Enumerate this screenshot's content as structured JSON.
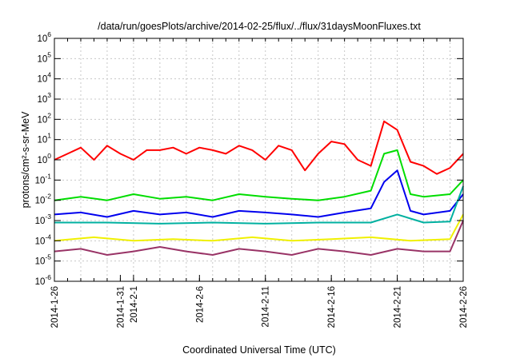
{
  "chart_data": {
    "type": "line",
    "title": "/data/run/goesPlots/archive/2014-02-25/flux/../flux/31daysMoonFluxes.txt",
    "xlabel": "Coordinated Universal Time (UTC)",
    "ylabel": "protons/cm²-s-sr-MeV",
    "yscale": "log",
    "ylim": [
      1e-06,
      1000000.0
    ],
    "xlim_days": [
      0,
      31
    ],
    "x_ticks": [
      {
        "day": 0,
        "label": "2014-1-26"
      },
      {
        "day": 5,
        "label": "2014-1-31"
      },
      {
        "day": 6,
        "label": "2014-2-1"
      },
      {
        "day": 11,
        "label": "2014-2-6"
      },
      {
        "day": 16,
        "label": "2014-2-11"
      },
      {
        "day": 21,
        "label": "2014-2-16"
      },
      {
        "day": 26,
        "label": "2014-2-21"
      },
      {
        "day": 31,
        "label": "2014-2-26"
      }
    ],
    "y_ticks": [
      {
        "exp": -6,
        "base": "10",
        "sup": "-6"
      },
      {
        "exp": -5,
        "base": "10",
        "sup": "-5"
      },
      {
        "exp": -4,
        "base": "10",
        "sup": "-4"
      },
      {
        "exp": -3,
        "base": "10",
        "sup": "-3"
      },
      {
        "exp": -2,
        "base": "10",
        "sup": "-2"
      },
      {
        "exp": -1,
        "base": "10",
        "sup": "-1"
      },
      {
        "exp": 0,
        "base": "10",
        "sup": "0"
      },
      {
        "exp": 1,
        "base": "10",
        "sup": "1"
      },
      {
        "exp": 2,
        "base": "10",
        "sup": "2"
      },
      {
        "exp": 3,
        "base": "10",
        "sup": "3"
      },
      {
        "exp": 4,
        "base": "10",
        "sup": "4"
      },
      {
        "exp": 5,
        "base": "10",
        "sup": "5"
      },
      {
        "exp": 6,
        "base": "10",
        "sup": "6"
      }
    ],
    "grid": true,
    "series": [
      {
        "color": "#ff0000",
        "x": [
          0,
          1,
          2,
          3,
          4,
          5,
          6,
          7,
          8,
          9,
          10,
          11,
          12,
          13,
          14,
          15,
          16,
          17,
          18,
          19,
          20,
          21,
          22,
          23,
          24,
          25,
          26,
          27,
          28,
          29,
          30,
          31
        ],
        "y": [
          1,
          2,
          4,
          1,
          5,
          2,
          1,
          3,
          3,
          4,
          2,
          4,
          3,
          2,
          5,
          3,
          1,
          5,
          3,
          0.3,
          2,
          8,
          6,
          1,
          0.5,
          80,
          30,
          0.8,
          0.5,
          0.2,
          0.4,
          2
        ]
      },
      {
        "color": "#00dd00",
        "x": [
          0,
          2,
          4,
          6,
          8,
          10,
          12,
          14,
          16,
          18,
          20,
          22,
          24,
          25,
          26,
          27,
          28,
          30,
          31
        ],
        "y": [
          0.01,
          0.015,
          0.01,
          0.02,
          0.012,
          0.015,
          0.01,
          0.02,
          0.015,
          0.012,
          0.01,
          0.015,
          0.03,
          2,
          3,
          0.02,
          0.015,
          0.02,
          0.1
        ]
      },
      {
        "color": "#0000ee",
        "x": [
          0,
          2,
          4,
          6,
          8,
          10,
          12,
          14,
          16,
          18,
          20,
          22,
          24,
          25,
          26,
          27,
          28,
          30,
          31
        ],
        "y": [
          0.002,
          0.0025,
          0.0015,
          0.003,
          0.002,
          0.0025,
          0.0015,
          0.003,
          0.0025,
          0.002,
          0.0015,
          0.0025,
          0.004,
          0.08,
          0.3,
          0.003,
          0.002,
          0.003,
          0.02
        ]
      },
      {
        "color": "#00b0a0",
        "x": [
          0,
          4,
          8,
          12,
          16,
          20,
          24,
          26,
          28,
          30,
          31
        ],
        "y": [
          0.0008,
          0.0008,
          0.0007,
          0.0008,
          0.0007,
          0.0008,
          0.0008,
          0.002,
          0.0008,
          0.0009,
          0.05
        ]
      },
      {
        "color": "#f0f000",
        "x": [
          0,
          3,
          6,
          9,
          12,
          15,
          18,
          21,
          24,
          27,
          30,
          31
        ],
        "y": [
          0.0001,
          0.00015,
          0.0001,
          0.00012,
          0.0001,
          0.00015,
          0.0001,
          0.00012,
          0.00015,
          0.0001,
          0.00012,
          0.002
        ]
      },
      {
        "color": "#993366",
        "x": [
          0,
          2,
          4,
          6,
          8,
          10,
          12,
          14,
          16,
          18,
          20,
          22,
          24,
          26,
          28,
          30,
          31
        ],
        "y": [
          3e-05,
          4e-05,
          2e-05,
          3e-05,
          5e-05,
          3e-05,
          2e-05,
          4e-05,
          3e-05,
          2e-05,
          4e-05,
          3e-05,
          2e-05,
          4e-05,
          3e-05,
          3e-05,
          0.001
        ]
      }
    ]
  }
}
